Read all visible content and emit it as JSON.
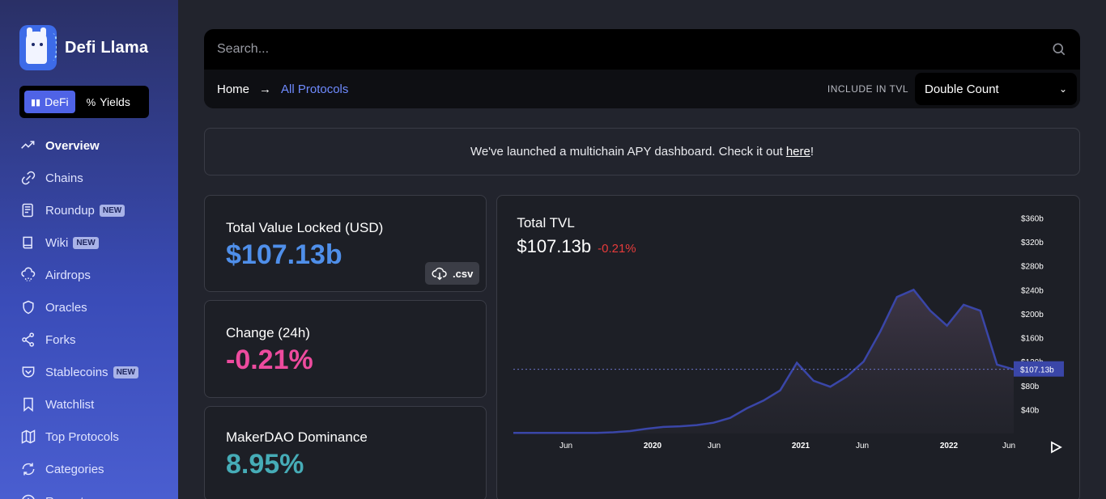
{
  "brand": {
    "name": "Defi Llama"
  },
  "switch": {
    "defi": "DeFi",
    "yields": "Yields",
    "defi_icon": "bar-chart-icon",
    "yields_icon": "percent-icon"
  },
  "nav": [
    {
      "label": "Overview",
      "icon": "trend-up-icon",
      "active": true,
      "badge": ""
    },
    {
      "label": "Chains",
      "icon": "link-icon",
      "badge": ""
    },
    {
      "label": "Roundup",
      "icon": "newspaper-icon",
      "badge": "NEW"
    },
    {
      "label": "Wiki",
      "icon": "book-icon",
      "badge": "NEW"
    },
    {
      "label": "Airdrops",
      "icon": "cloud-drizzle-icon",
      "badge": ""
    },
    {
      "label": "Oracles",
      "icon": "shield-icon",
      "badge": ""
    },
    {
      "label": "Forks",
      "icon": "share-icon",
      "badge": ""
    },
    {
      "label": "Stablecoins",
      "icon": "pocket-icon",
      "badge": "NEW"
    },
    {
      "label": "Watchlist",
      "icon": "bookmark-icon",
      "badge": ""
    },
    {
      "label": "Top Protocols",
      "icon": "map-icon",
      "badge": ""
    },
    {
      "label": "Categories",
      "icon": "refresh-icon",
      "badge": ""
    },
    {
      "label": "Recent",
      "icon": "clock-icon",
      "badge": ""
    }
  ],
  "search": {
    "placeholder": "Search..."
  },
  "breadcrumb": {
    "home": "Home",
    "current": "All Protocols"
  },
  "tvl_option": {
    "label": "INCLUDE IN TVL",
    "selected": "Double Count"
  },
  "announcement": {
    "text": "We've launched a multichain APY dashboard. Check it out",
    "link": "here",
    "suffix": "!"
  },
  "cards": {
    "tvl": {
      "title": "Total Value Locked (USD)",
      "value": "$107.13b",
      "color": "#4f8fea",
      "csv": ".csv"
    },
    "change": {
      "title": "Change (24h)",
      "value": "-0.21%",
      "color": "#ed4b9e"
    },
    "dominance": {
      "title": "MakerDAO Dominance",
      "value": "8.95%",
      "color": "#46acb7"
    }
  },
  "chart": {
    "title": "Total TVL",
    "value": "$107.13b",
    "change": "-0.21%",
    "current_label": "$107.13b"
  },
  "chart_data": {
    "type": "area",
    "title": "Total TVL",
    "yticks": [
      "$40b",
      "$80b",
      "$120b",
      "$160b",
      "$200b",
      "$240b",
      "$280b",
      "$320b",
      "$360b"
    ],
    "xticks": [
      "Jun",
      "2020",
      "Jun",
      "2021",
      "Jun",
      "2022",
      "Jun"
    ],
    "ylim": [
      0,
      370
    ],
    "x": [
      "2019-01",
      "2019-03",
      "2019-06",
      "2019-09",
      "2019-12",
      "2020-03",
      "2020-06",
      "2020-07",
      "2020-08",
      "2020-09",
      "2020-10",
      "2020-11",
      "2020-12",
      "2021-01",
      "2021-02",
      "2021-03",
      "2021-04",
      "2021-05",
      "2021-06",
      "2021-07",
      "2021-08",
      "2021-09",
      "2021-10",
      "2021-11",
      "2021-12",
      "2022-01",
      "2022-02",
      "2022-03",
      "2022-04",
      "2022-05",
      "2022-06"
    ],
    "values": [
      1,
      1,
      1,
      1,
      1,
      1,
      2,
      4,
      8,
      11,
      12,
      14,
      18,
      26,
      42,
      55,
      72,
      118,
      88,
      78,
      95,
      120,
      170,
      228,
      240,
      205,
      180,
      215,
      205,
      115,
      107.13
    ],
    "current_value": 107.13,
    "series_color": "#3a46a8",
    "grid": false
  }
}
